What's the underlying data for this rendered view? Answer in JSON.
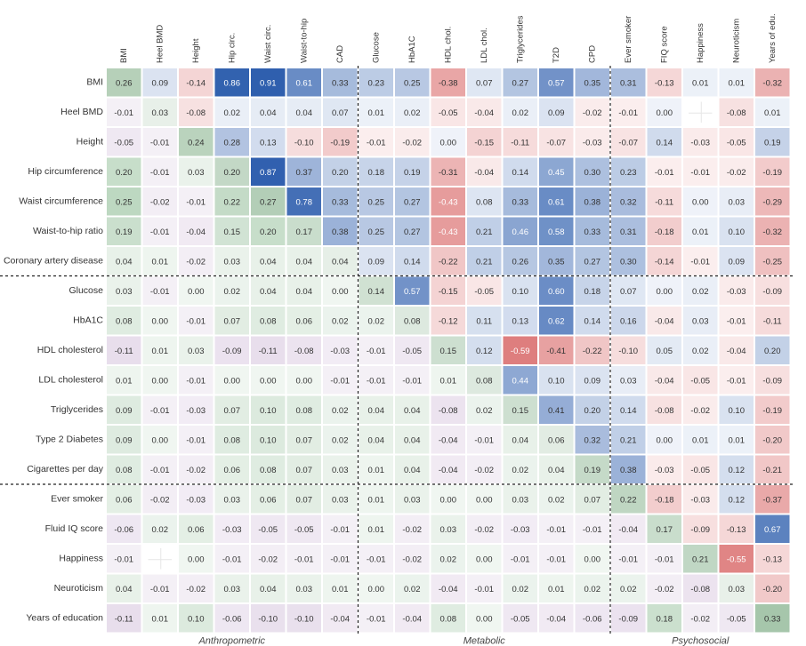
{
  "chart_data": {
    "type": "heatmap",
    "columns": [
      "BMI",
      "Heel BMD",
      "Height",
      "Hip circ.",
      "Waist circ.",
      "Waist-to-hip",
      "CAD",
      "Glucose",
      "HbA1C",
      "HDL chol.",
      "LDL chol.",
      "Triglycerides",
      "T2D",
      "CPD",
      "Ever smoker",
      "FIQ score",
      "Happiness",
      "Neuroticism",
      "Years of edu."
    ],
    "rows": [
      "BMI",
      "Heel BMD",
      "Height",
      "Hip circumference",
      "Waist circumference",
      "Waist-to-hip ratio",
      "Coronary artery disease",
      "Glucose",
      "HbA1C",
      "HDL cholesterol",
      "LDL cholesterol",
      "Triglycerides",
      "Type 2 Diabetes",
      "Cigarettes per day",
      "Ever smoker",
      "Fluid IQ score",
      "Happiness",
      "Neuroticism",
      "Years of education"
    ],
    "groups": [
      {
        "name": "Anthropometric",
        "size": 7
      },
      {
        "name": "Metabolic",
        "size": 7
      },
      {
        "name": "Psychosocial",
        "size": 5
      }
    ],
    "colors": {
      "diagonal": "#2f7a3a",
      "upper_positive": "#2f5fae",
      "upper_negative": "#d04646",
      "lower_positive": "#3f8c4a",
      "lower_negative": "#8a55a0"
    },
    "values": [
      [
        0.26,
        0.09,
        -0.14,
        0.86,
        0.91,
        0.61,
        0.33,
        0.23,
        0.25,
        -0.38,
        0.07,
        0.27,
        0.57,
        0.35,
        0.31,
        -0.13,
        0.01,
        0.01,
        -0.32
      ],
      [
        -0.01,
        0.03,
        -0.08,
        0.02,
        0.04,
        0.04,
        0.07,
        0.01,
        0.02,
        -0.05,
        -0.04,
        0.02,
        0.09,
        -0.02,
        -0.01,
        0.0,
        null,
        -0.08,
        0.01
      ],
      [
        -0.05,
        -0.01,
        0.24,
        0.28,
        0.13,
        -0.1,
        -0.19,
        -0.01,
        -0.02,
        0.0,
        -0.15,
        -0.11,
        -0.07,
        -0.03,
        -0.07,
        0.14,
        -0.03,
        -0.05,
        0.19
      ],
      [
        0.2,
        -0.01,
        0.03,
        0.2,
        0.87,
        0.37,
        0.2,
        0.18,
        0.19,
        -0.31,
        -0.04,
        0.14,
        0.45,
        0.3,
        0.23,
        -0.01,
        -0.01,
        -0.02,
        -0.19
      ],
      [
        0.25,
        -0.02,
        -0.01,
        0.22,
        0.27,
        0.78,
        0.33,
        0.25,
        0.27,
        -0.43,
        0.08,
        0.33,
        0.61,
        0.38,
        0.32,
        -0.11,
        0.0,
        0.03,
        -0.29
      ],
      [
        0.19,
        -0.01,
        -0.04,
        0.15,
        0.2,
        0.17,
        0.38,
        0.25,
        0.27,
        -0.43,
        0.21,
        0.46,
        0.58,
        0.33,
        0.31,
        -0.18,
        0.01,
        0.1,
        -0.32
      ],
      [
        0.04,
        0.01,
        -0.02,
        0.03,
        0.04,
        0.04,
        0.04,
        0.09,
        0.14,
        -0.22,
        0.21,
        0.26,
        0.35,
        0.27,
        0.3,
        -0.14,
        -0.01,
        0.09,
        -0.25
      ],
      [
        0.03,
        -0.01,
        0.0,
        0.02,
        0.04,
        0.04,
        0.0,
        0.14,
        0.57,
        -0.15,
        -0.05,
        0.1,
        0.6,
        0.18,
        0.07,
        0.0,
        0.02,
        -0.03,
        -0.09
      ],
      [
        0.08,
        0.0,
        -0.01,
        0.07,
        0.08,
        0.06,
        0.02,
        0.02,
        0.08,
        -0.12,
        0.11,
        0.13,
        0.62,
        0.14,
        0.16,
        -0.04,
        0.03,
        -0.01,
        -0.11
      ],
      [
        -0.11,
        0.01,
        0.03,
        -0.09,
        -0.11,
        -0.08,
        -0.03,
        -0.01,
        -0.05,
        0.15,
        0.12,
        -0.59,
        -0.41,
        -0.22,
        -0.1,
        0.05,
        0.02,
        -0.04,
        0.2
      ],
      [
        0.01,
        0.0,
        -0.01,
        0.0,
        0.0,
        0.0,
        -0.01,
        -0.01,
        -0.01,
        0.01,
        0.08,
        0.44,
        0.1,
        0.09,
        0.03,
        -0.04,
        -0.05,
        -0.01,
        -0.09
      ],
      [
        0.09,
        -0.01,
        -0.03,
        0.07,
        0.1,
        0.08,
        0.02,
        0.04,
        0.04,
        -0.08,
        0.02,
        0.15,
        0.41,
        0.2,
        0.14,
        -0.08,
        -0.02,
        0.1,
        -0.19
      ],
      [
        0.09,
        0.0,
        -0.01,
        0.08,
        0.1,
        0.07,
        0.02,
        0.04,
        0.04,
        -0.04,
        -0.01,
        0.04,
        0.06,
        0.32,
        0.21,
        0.0,
        0.01,
        0.01,
        -0.2
      ],
      [
        0.08,
        -0.01,
        -0.02,
        0.06,
        0.08,
        0.07,
        0.03,
        0.01,
        0.04,
        -0.04,
        -0.02,
        0.02,
        0.04,
        0.19,
        0.38,
        -0.03,
        -0.05,
        0.12,
        -0.21
      ],
      [
        0.06,
        -0.02,
        -0.03,
        0.03,
        0.06,
        0.07,
        0.03,
        0.01,
        0.03,
        0.0,
        0.0,
        0.03,
        0.02,
        0.07,
        0.22,
        -0.18,
        -0.03,
        0.12,
        -0.37
      ],
      [
        -0.06,
        0.02,
        0.06,
        -0.03,
        -0.05,
        -0.05,
        -0.01,
        0.01,
        -0.02,
        0.03,
        -0.02,
        -0.03,
        -0.01,
        -0.01,
        -0.04,
        0.17,
        -0.09,
        -0.13,
        0.67
      ],
      [
        -0.01,
        null,
        0.0,
        -0.01,
        -0.02,
        -0.01,
        -0.01,
        -0.01,
        -0.02,
        0.02,
        0.0,
        -0.01,
        -0.01,
        0.0,
        -0.01,
        -0.01,
        0.21,
        -0.55,
        -0.13
      ],
      [
        0.04,
        -0.01,
        -0.02,
        0.03,
        0.04,
        0.03,
        0.01,
        0.0,
        0.02,
        -0.04,
        -0.01,
        0.02,
        0.01,
        0.02,
        0.02,
        -0.02,
        -0.08,
        0.03,
        -0.2
      ],
      [
        -0.11,
        0.01,
        0.1,
        -0.06,
        -0.1,
        -0.1,
        -0.04,
        -0.01,
        -0.04,
        0.08,
        0.0,
        -0.05,
        -0.04,
        -0.06,
        -0.09,
        0.18,
        -0.02,
        -0.05,
        0.33
      ]
    ],
    "value_labels": [
      [
        "0.26",
        "0.09",
        "-0.14",
        "0.86",
        "0.91",
        "0.61",
        "0.33",
        "0.23",
        "0.25",
        "-0.38",
        "0.07",
        "0.27",
        "0.57",
        "0.35",
        "0.31",
        "-0.13",
        "0.01",
        "0.01",
        "-0.32"
      ],
      [
        "-0.01",
        "0.03",
        "-0.08",
        "0.02",
        "0.04",
        "0.04",
        "0.07",
        "0.01",
        "0.02",
        "-0.05",
        "-0.04",
        "0.02",
        "0.09",
        "-0.02",
        "-0.01",
        "0.00",
        null,
        "-0.08",
        "0.01"
      ],
      [
        "-0.05",
        "-0.01",
        "0.24",
        "0.28",
        "0.13",
        "-0.10",
        "-0.19",
        "-0.01",
        "-0.02",
        "0.00",
        "-0.15",
        "-0.11",
        "-0.07",
        "-0.03",
        "-0.07",
        "0.14",
        "-0.03",
        "-0.05",
        "0.19"
      ],
      [
        "0.20",
        "-0.01",
        "0.03",
        "0.20",
        "0.87",
        "0.37",
        "0.20",
        "0.18",
        "0.19",
        "-0.31",
        "-0.04",
        "0.14",
        "0.45",
        "0.30",
        "0.23",
        "-0.01",
        "-0.01",
        "-0.02",
        "-0.19"
      ],
      [
        "0.25",
        "-0.02",
        "-0.01",
        "0.22",
        "0.27",
        "0.78",
        "0.33",
        "0.25",
        "0.27",
        "-0.43",
        "0.08",
        "0.33",
        "0.61",
        "0.38",
        "0.32",
        "-0.11",
        "0.00",
        "0.03",
        "-0.29"
      ],
      [
        "0.19",
        "-0.01",
        "-0.04",
        "0.15",
        "0.20",
        "0.17",
        "0.38",
        "0.25",
        "0.27",
        "-0.43",
        "0.21",
        "0.46",
        "0.58",
        "0.33",
        "0.31",
        "-0.18",
        "0.01",
        "0.10",
        "-0.32"
      ],
      [
        "0.04",
        "0.01",
        "-0.02",
        "0.03",
        "0.04",
        "0.04",
        "0.04",
        "0.09",
        "0.14",
        "-0.22",
        "0.21",
        "0.26",
        "0.35",
        "0.27",
        "0.30",
        "-0.14",
        "-0.01",
        "0.09",
        "-0.25"
      ],
      [
        "0.03",
        "-0.01",
        "0.00",
        "0.02",
        "0.04",
        "0.04",
        "0.00",
        "0.14",
        "0.57",
        "-0.15",
        "-0.05",
        "0.10",
        "0.60",
        "0.18",
        "0.07",
        "0.00",
        "0.02",
        "-0.03",
        "-0.09"
      ],
      [
        "0.08",
        "0.00",
        "-0.01",
        "0.07",
        "0.08",
        "0.06",
        "0.02",
        "0.02",
        "0.08",
        "-0.12",
        "0.11",
        "0.13",
        "0.62",
        "0.14",
        "0.16",
        "-0.04",
        "0.03",
        "-0.01",
        "-0.11"
      ],
      [
        "-0.11",
        "0.01",
        "0.03",
        "-0.09",
        "-0.11",
        "-0.08",
        "-0.03",
        "-0.01",
        "-0.05",
        "0.15",
        "0.12",
        "-0.59",
        "-0.41",
        "-0.22",
        "-0.10",
        "0.05",
        "0.02",
        "-0.04",
        "0.20"
      ],
      [
        "0.01",
        "0.00",
        "-0.01",
        "0.00",
        "0.00",
        "0.00",
        "-0.01",
        "-0.01",
        "-0.01",
        "0.01",
        "0.08",
        "0.44",
        "0.10",
        "0.09",
        "0.03",
        "-0.04",
        "-0.05",
        "-0.01",
        "-0.09"
      ],
      [
        "0.09",
        "-0.01",
        "-0.03",
        "0.07",
        "0.10",
        "0.08",
        "0.02",
        "0.04",
        "0.04",
        "-0.08",
        "0.02",
        "0.15",
        "0.41",
        "0.20",
        "0.14",
        "-0.08",
        "-0.02",
        "0.10",
        "-0.19"
      ],
      [
        "0.09",
        "0.00",
        "-0.01",
        "0.08",
        "0.10",
        "0.07",
        "0.02",
        "0.04",
        "0.04",
        "-0.04",
        "-0.01",
        "0.04",
        "0.06",
        "0.32",
        "0.21",
        "0.00",
        "0.01",
        "0.01",
        "-0.20"
      ],
      [
        "0.08",
        "-0.01",
        "-0.02",
        "0.06",
        "0.08",
        "0.07",
        "0.03",
        "0.01",
        "0.04",
        "-0.04",
        "-0.02",
        "0.02",
        "0.04",
        "0.19",
        "0.38",
        "-0.03",
        "-0.05",
        "0.12",
        "-0.21"
      ],
      [
        "0.06",
        "-0.02",
        "-0.03",
        "0.03",
        "0.06",
        "0.07",
        "0.03",
        "0.01",
        "0.03",
        "0.00",
        "0.00",
        "0.03",
        "0.02",
        "0.07",
        "0.22",
        "-0.18",
        "-0.03",
        "0.12",
        "-0.37"
      ],
      [
        "-0.06",
        "0.02",
        "0.06",
        "-0.03",
        "-0.05",
        "-0.05",
        "-0.01",
        "0.01",
        "-0.02",
        "0.03",
        "-0.02",
        "-0.03",
        "-0.01",
        "-0.01",
        "-0.04",
        "0.17",
        "-0.09",
        "-0.13",
        "0.67"
      ],
      [
        "-0.01",
        null,
        "0.00",
        "-0.01",
        "-0.02",
        "-0.01",
        "-0.01",
        "-0.01",
        "-0.02",
        "0.02",
        "0.00",
        "-0.01",
        "-0.01",
        "0.00",
        "-0.01",
        "-0.01",
        "0.21",
        "-0.55",
        "-0.13"
      ],
      [
        "0.04",
        "-0.01",
        "-0.02",
        "0.03",
        "0.04",
        "0.03",
        "0.01",
        "0.00",
        "0.02",
        "-0.04",
        "-0.01",
        "0.02",
        "0.01",
        "0.02",
        "0.02",
        "-0.02",
        "-0.08",
        "0.03",
        "-0.20"
      ],
      [
        "-0.11",
        "0.01",
        "0.10",
        "-0.06",
        "-0.10",
        "-0.10",
        "-0.04",
        "-0.01",
        "-0.04",
        "0.08",
        "0.00",
        "-0.05",
        "-0.04",
        "-0.06",
        "-0.09",
        "0.18",
        "-0.02",
        "-0.05",
        "0.33"
      ]
    ]
  }
}
